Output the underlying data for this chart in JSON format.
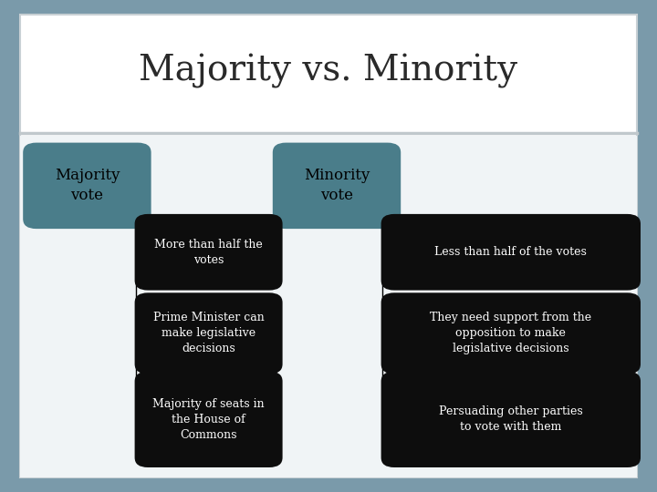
{
  "title": "Majority vs. Minority",
  "title_fontsize": 28,
  "title_font": "serif",
  "outer_bg": "#7a9aaa",
  "header_bg": "#ffffff",
  "content_bg": "#ffffff",
  "left_header": "Majority\nvote",
  "right_header": "Minority\nvote",
  "header_box_color": "#4a7d8a",
  "left_items": [
    "More than half the\nvotes",
    "Prime Minister can\nmake legislative\ndecisions",
    "Majority of seats in\nthe House of\nCommons"
  ],
  "right_items": [
    "Less than half of the votes",
    "They need support from the\nopposition to make\nlegislative decisions",
    "Persuading other parties\nto vote with them"
  ],
  "item_box_color": "#0d0d0d",
  "item_text_color": "#ffffff",
  "header_text_color": "#000000",
  "line_color": "#000000",
  "separator_color": "#c0c8cc",
  "border_color": "#c8d0d4"
}
